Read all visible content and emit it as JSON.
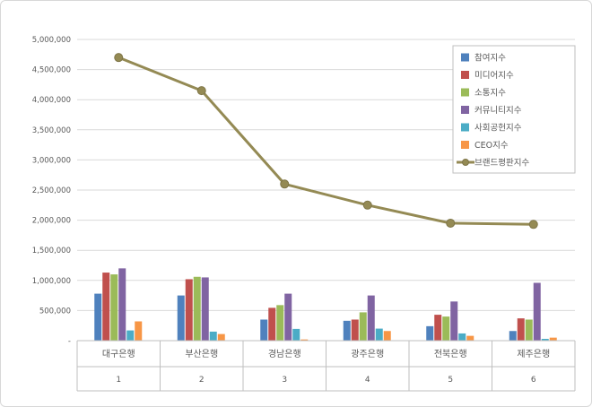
{
  "chart_data": {
    "type": "bar+line",
    "title": "",
    "categories": [
      "대구은행",
      "부산은행",
      "경남은행",
      "광주은행",
      "전북은행",
      "제주은행"
    ],
    "category_indices": [
      "1",
      "2",
      "3",
      "4",
      "5",
      "6"
    ],
    "series": [
      {
        "name": "참여지수",
        "type": "bar",
        "color": "#4F81BD",
        "values": [
          780000,
          750000,
          350000,
          330000,
          240000,
          160000
        ]
      },
      {
        "name": "미디어지수",
        "type": "bar",
        "color": "#C0504D",
        "values": [
          1130000,
          1020000,
          545000,
          350000,
          430000,
          370000
        ]
      },
      {
        "name": "소통지수",
        "type": "bar",
        "color": "#9BBB59",
        "values": [
          1100000,
          1060000,
          590000,
          470000,
          400000,
          350000
        ]
      },
      {
        "name": "커뮤니티지수",
        "type": "bar",
        "color": "#8064A2",
        "values": [
          1200000,
          1050000,
          780000,
          750000,
          650000,
          960000
        ]
      },
      {
        "name": "사회공헌지수",
        "type": "bar",
        "color": "#4BACC6",
        "values": [
          170000,
          150000,
          195000,
          200000,
          120000,
          30000
        ]
      },
      {
        "name": "CEO지수",
        "type": "bar",
        "color": "#F79646",
        "values": [
          320000,
          110000,
          20000,
          160000,
          80000,
          50000
        ]
      },
      {
        "name": "브랜드평판지수",
        "type": "line",
        "color": "#948A54",
        "values": [
          4700000,
          4150000,
          2600000,
          2250000,
          1950000,
          1930000
        ]
      }
    ],
    "ylim": [
      0,
      5000000
    ],
    "ytick_step": 500000,
    "ytick_labels": [
      "-",
      "500,000",
      "1,000,000",
      "1,500,000",
      "2,000,000",
      "2,500,000",
      "3,000,000",
      "3,500,000",
      "4,000,000",
      "4,500,000",
      "5,000,000"
    ],
    "grid": true,
    "legend_position": "right-top",
    "colors": {
      "gridline": "#D9D9D9",
      "axis_line": "#BFBFBF",
      "axis_text": "#595959",
      "legend_border": "#BFBFBF",
      "background": "#FFFFFF"
    }
  }
}
